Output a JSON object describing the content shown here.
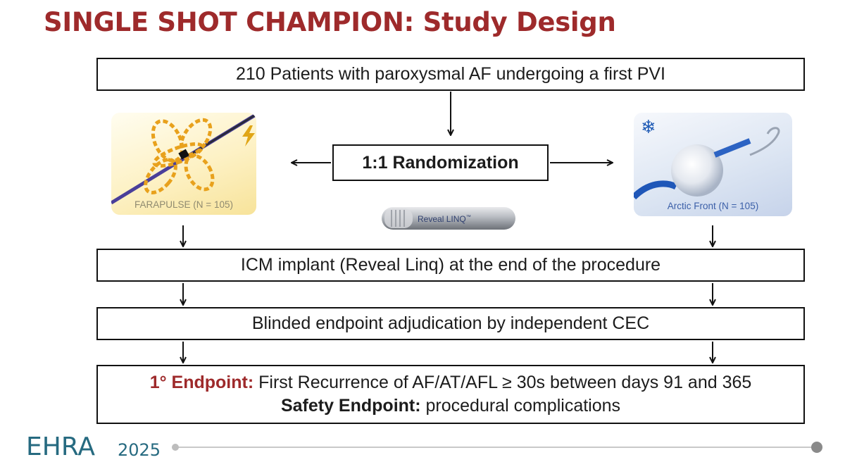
{
  "title": "SINGLE SHOT CHAMPION: Study Design",
  "population": "210 Patients with paroxysmal AF undergoing a first PVI",
  "randomization": "1:1 Randomization",
  "arms": {
    "left": {
      "label": "FARAPULSE (N = 105)",
      "icon": "lightning-icon"
    },
    "right": {
      "label": "Arctic Front (N = 105)",
      "icon": "snowflake-icon"
    }
  },
  "device_label": "Reveal LINQ",
  "device_mark": "™",
  "icm": "ICM implant (Reveal Linq) at the end of the procedure",
  "blinded": "Blinded endpoint adjudication by independent CEC",
  "endpoints": {
    "primary_label": "1° Endpoint:",
    "primary_text": " First Recurrence of AF/AT/AFL ≥ 30s between days 91 and 365",
    "safety_label": "Safety Endpoint:",
    "safety_text": " procedural complications"
  },
  "footer": {
    "logo": "EHRA",
    "year": "2025"
  },
  "colors": {
    "title": "#9e2a2b",
    "footer": "#266a80"
  }
}
